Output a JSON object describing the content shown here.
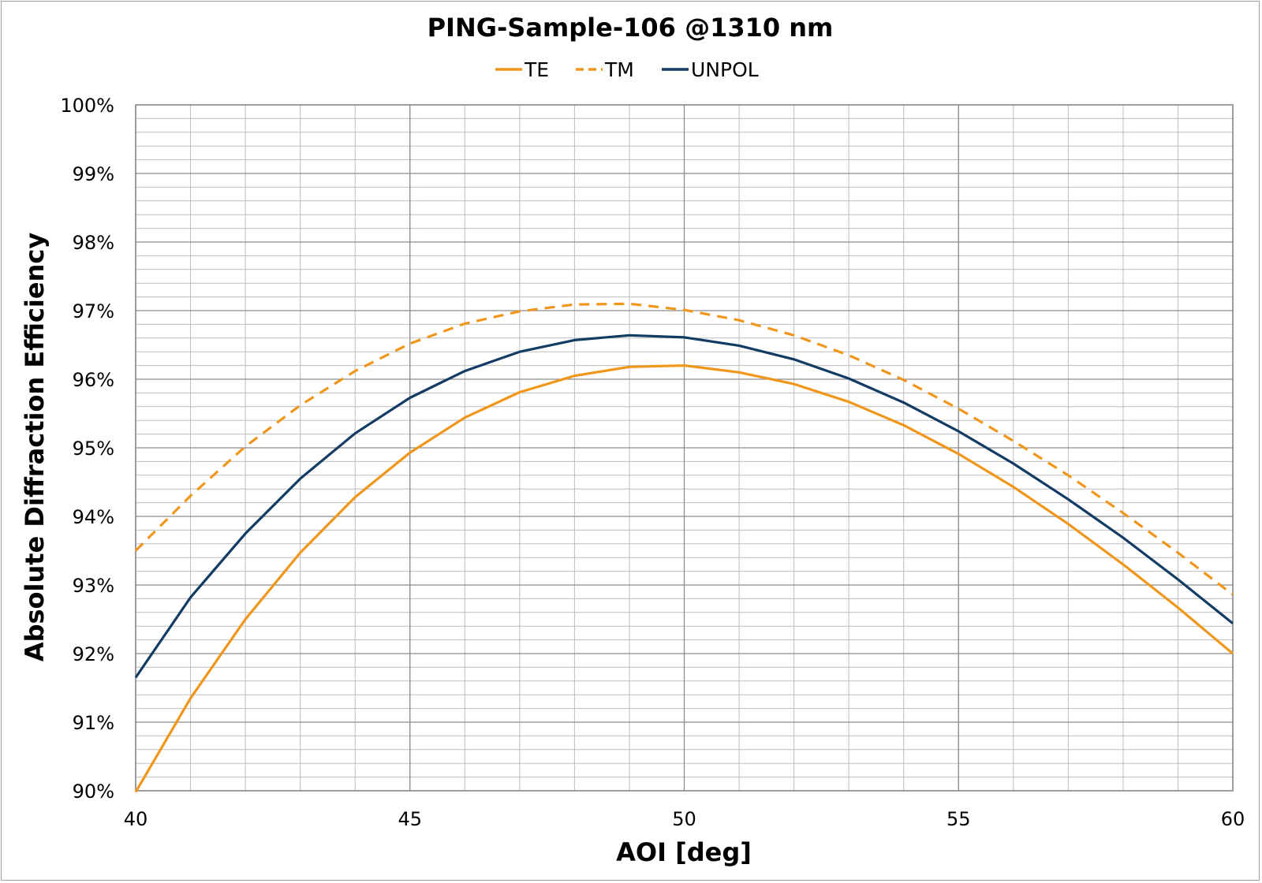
{
  "chart_data": {
    "type": "line",
    "title": "PING-Sample-106 @1310 nm",
    "xlabel": "AOI [deg]",
    "ylabel": "Absolute Diffraction Efficiency",
    "xlim": [
      40,
      60
    ],
    "ylim": [
      90,
      100
    ],
    "x_major_ticks": [
      40,
      45,
      50,
      55,
      60
    ],
    "x_tick_labels": [
      "40",
      "45",
      "50",
      "55",
      "60"
    ],
    "x_minor_step": 1,
    "y_major_ticks": [
      90,
      91,
      92,
      93,
      94,
      95,
      96,
      97,
      98,
      99,
      100
    ],
    "y_tick_labels": [
      "90%",
      "91%",
      "92%",
      "93%",
      "94%",
      "95%",
      "96%",
      "97%",
      "98%",
      "99%",
      "100%"
    ],
    "y_minor_step": 0.2,
    "grid": true,
    "legend_position": "top",
    "x": [
      40,
      41,
      42,
      43,
      44,
      45,
      46,
      47,
      48,
      49,
      50,
      51,
      52,
      53,
      54,
      55,
      56,
      57,
      58,
      59,
      60
    ],
    "series": [
      {
        "name": "TE",
        "color": "#f0961b",
        "dash": "solid",
        "values": [
          89.98,
          91.35,
          92.5,
          93.47,
          94.28,
          94.93,
          95.44,
          95.81,
          96.05,
          96.18,
          96.2,
          96.1,
          95.93,
          95.67,
          95.33,
          94.91,
          94.43,
          93.89,
          93.3,
          92.67,
          92.0
        ]
      },
      {
        "name": "TM",
        "color": "#f0961b",
        "dash": "dashed",
        "values": [
          93.5,
          94.3,
          95.02,
          95.62,
          96.12,
          96.52,
          96.81,
          96.99,
          97.09,
          97.1,
          97.01,
          96.86,
          96.64,
          96.35,
          95.99,
          95.57,
          95.1,
          94.6,
          94.05,
          93.47,
          92.86
        ]
      },
      {
        "name": "UNPOL",
        "color": "#133c64",
        "dash": "solid",
        "values": [
          91.65,
          92.82,
          93.75,
          94.55,
          95.21,
          95.73,
          96.12,
          96.4,
          96.57,
          96.64,
          96.61,
          96.49,
          96.29,
          96.01,
          95.66,
          95.24,
          94.77,
          94.25,
          93.69,
          93.08,
          92.44
        ]
      }
    ]
  }
}
